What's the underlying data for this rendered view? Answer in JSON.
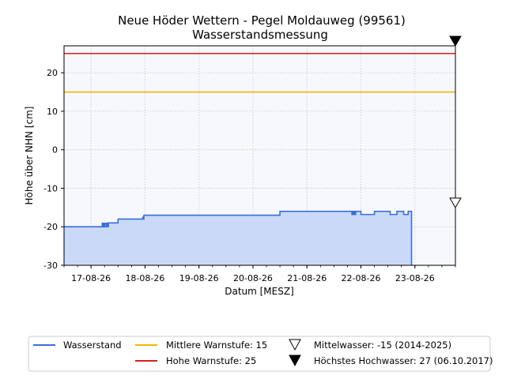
{
  "chart_data": {
    "type": "line",
    "title": "Neue Höder Wettern - Pegel Moldauweg (99561)",
    "subtitle": "Wasserstandsmessung",
    "xlabel": "Datum [MESZ]",
    "ylabel": "Höhe über NHN [cm]",
    "ylim": [
      -30,
      27
    ],
    "yticks": [
      -30,
      -20,
      -10,
      0,
      10,
      20
    ],
    "xlim": [
      "2026-08-16 12:00",
      "2026-08-23 18:00"
    ],
    "xtick_values": [
      "2026-08-17 00:00",
      "2026-08-18 00:00",
      "2026-08-19 00:00",
      "2026-08-20 00:00",
      "2026-08-21 00:00",
      "2026-08-22 00:00",
      "2026-08-23 00:00"
    ],
    "xtick_labels": [
      "17-08-26",
      "18-08-26",
      "19-08-26",
      "20-08-26",
      "21-08-26",
      "22-08-26",
      "23-08-26"
    ],
    "grid": true,
    "legend_position": "bottom",
    "series": [
      {
        "name": "Wasserstand",
        "color": "#3a6fd8",
        "fill_color": "#c9d9f7",
        "x": [
          "2026-08-16 12:00",
          "2026-08-17 05:00",
          "2026-08-17 05:00",
          "2026-08-17 05:30",
          "2026-08-17 05:30",
          "2026-08-17 06:00",
          "2026-08-17 06:00",
          "2026-08-17 06:40",
          "2026-08-17 06:40",
          "2026-08-17 07:00",
          "2026-08-17 07:00",
          "2026-08-17 07:20",
          "2026-08-17 07:20",
          "2026-08-17 07:40",
          "2026-08-17 07:40",
          "2026-08-17 12:00",
          "2026-08-17 12:00",
          "2026-08-17 23:00",
          "2026-08-17 23:00",
          "2026-08-17 23:10",
          "2026-08-17 23:10",
          "2026-08-17 23:30",
          "2026-08-17 23:30",
          "2026-08-18 12:00",
          "2026-08-18 12:00",
          "2026-08-19 00:00",
          "2026-08-19 00:00",
          "2026-08-20 12:00",
          "2026-08-20 12:00",
          "2026-08-21 12:00",
          "2026-08-21 12:00",
          "2026-08-21 20:00",
          "2026-08-21 20:00",
          "2026-08-21 20:20",
          "2026-08-21 20:20",
          "2026-08-21 20:40",
          "2026-08-21 20:40",
          "2026-08-21 21:00",
          "2026-08-21 21:00",
          "2026-08-21 21:20",
          "2026-08-21 21:20",
          "2026-08-21 21:40",
          "2026-08-21 21:40",
          "2026-08-22 00:00",
          "2026-08-22 00:00",
          "2026-08-22 06:00",
          "2026-08-22 06:00",
          "2026-08-22 13:00",
          "2026-08-22 13:00",
          "2026-08-22 16:00",
          "2026-08-22 16:00",
          "2026-08-22 19:00",
          "2026-08-22 19:00",
          "2026-08-22 21:00",
          "2026-08-22 21:00",
          "2026-08-22 22:30",
          "2026-08-22 22:30"
        ],
        "y": [
          -20,
          -20,
          -19.1,
          -19.1,
          -20,
          -20,
          -19.1,
          -19.1,
          -20,
          -20,
          -19.1,
          -19.1,
          -20,
          -20,
          -19,
          -19,
          -18,
          -18,
          -17.5,
          -17.5,
          -18,
          -18,
          -17,
          -17,
          -17,
          -17,
          -17,
          -17,
          -16,
          -16,
          -16,
          -16,
          -16.8,
          -16.8,
          -16,
          -16,
          -16.8,
          -16.8,
          -16,
          -16,
          -16.8,
          -16.8,
          -16,
          -16,
          -16.8,
          -16.8,
          -16,
          -16,
          -16.8,
          -16.8,
          -16,
          -16,
          -16.8,
          -16.8,
          -16,
          -16,
          -30
        ]
      },
      {
        "name": "Mittlere Warnstufe: 15",
        "color": "#f2b600",
        "x": [
          "2026-08-16 12:00",
          "2026-08-23 18:00"
        ],
        "y": [
          15,
          15
        ]
      },
      {
        "name": "Hohe Warnstufe: 25",
        "color": "#d62020",
        "x": [
          "2026-08-16 12:00",
          "2026-08-23 18:00"
        ],
        "y": [
          25,
          25
        ]
      }
    ],
    "markers": [
      {
        "name": "Mittelwasser: -15 (2014-2025)",
        "value": -15,
        "style": "open-triangle-down",
        "color": "#000000"
      },
      {
        "name": "Höchstes Hochwasser: 27 (06.10.2017)",
        "value": 27,
        "style": "filled-triangle-down",
        "color": "#000000"
      }
    ]
  }
}
